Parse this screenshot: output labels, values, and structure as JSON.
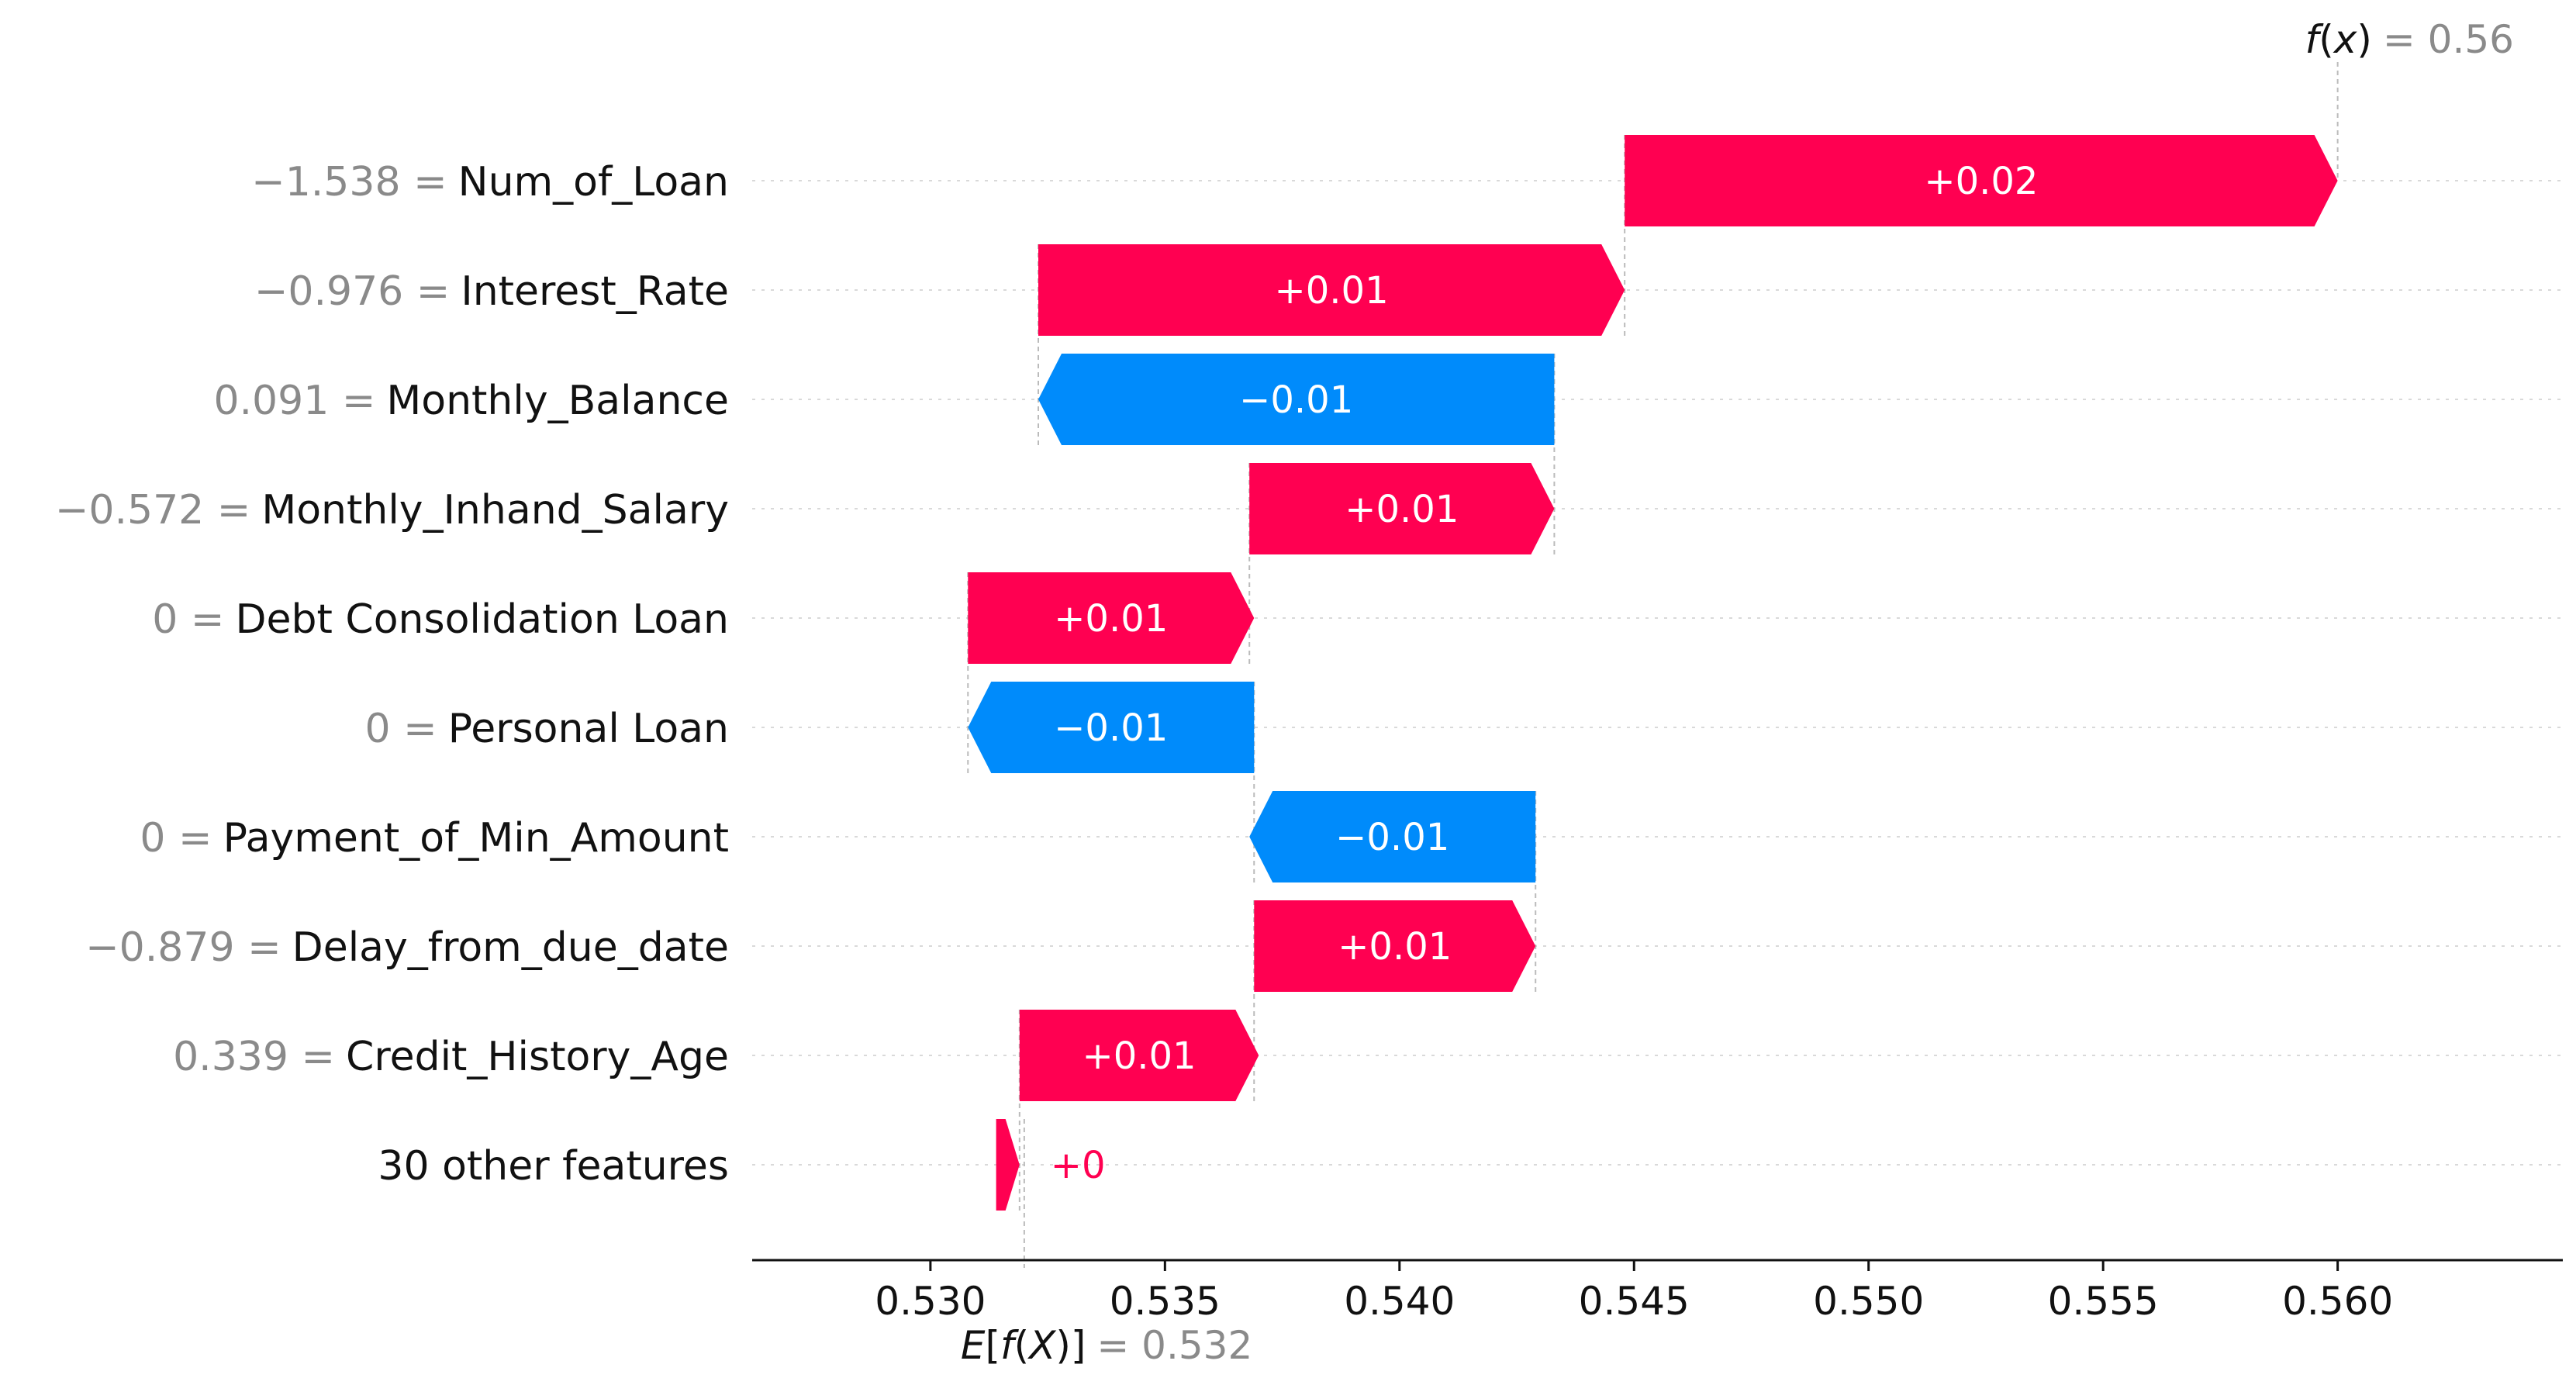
{
  "chart_data": {
    "type": "waterfall",
    "colors": {
      "positive": "#ff0051",
      "negative": "#008bfb",
      "axis": "#111111",
      "grid": "#d9d9d9",
      "value_text": "#8a8a8a"
    },
    "xlim": [
      0.5262,
      0.5648
    ],
    "x_ticks": [
      0.53,
      0.535,
      0.54,
      0.545,
      0.55,
      0.555,
      0.56
    ],
    "x_tick_labels": [
      "0.530",
      "0.535",
      "0.540",
      "0.545",
      "0.550",
      "0.555",
      "0.560"
    ],
    "base_value": {
      "value": 0.532,
      "prefix": "E[",
      "func": "f",
      "arg": "X",
      "suffix": "]]",
      "eq_text": "= 0.532"
    },
    "output_value": {
      "value": 0.56,
      "func": "f",
      "arg": "x",
      "eq_text": "= 0.56"
    },
    "features": [
      {
        "value_text": "−1.538 =",
        "name": "Num_of_Loan",
        "start": 0.5448,
        "end": 0.56,
        "label": "+0.02",
        "sign": "pos",
        "label_inside": true
      },
      {
        "value_text": "−0.976 =",
        "name": "Interest_Rate",
        "start": 0.5323,
        "end": 0.5448,
        "label": "+0.01",
        "sign": "pos",
        "label_inside": true
      },
      {
        "value_text": "0.091 =",
        "name": "Monthly_Balance",
        "start": 0.5433,
        "end": 0.5323,
        "label": "−0.01",
        "sign": "neg",
        "label_inside": true
      },
      {
        "value_text": "−0.572 =",
        "name": "Monthly_Inhand_Salary",
        "start": 0.5368,
        "end": 0.5433,
        "label": "+0.01",
        "sign": "pos",
        "label_inside": true
      },
      {
        "value_text": "0 =",
        "name": "Debt Consolidation Loan",
        "start": 0.5308,
        "end": 0.5369,
        "label": "+0.01",
        "sign": "pos",
        "label_inside": true
      },
      {
        "value_text": "0 =",
        "name": "Personal Loan",
        "start": 0.5369,
        "end": 0.5308,
        "label": "−0.01",
        "sign": "neg",
        "label_inside": true
      },
      {
        "value_text": "0 =",
        "name": "Payment_of_Min_Amount",
        "start": 0.5429,
        "end": 0.5368,
        "label": "−0.01",
        "sign": "neg",
        "label_inside": true
      },
      {
        "value_text": "−0.879 =",
        "name": "Delay_from_due_date",
        "start": 0.5369,
        "end": 0.5429,
        "label": "+0.01",
        "sign": "pos",
        "label_inside": true
      },
      {
        "value_text": "0.339 =",
        "name": "Credit_History_Age",
        "start": 0.5319,
        "end": 0.537,
        "label": "+0.01",
        "sign": "pos",
        "label_inside": true
      },
      {
        "value_text": "",
        "name": "30 other features",
        "start": 0.5314,
        "end": 0.5319,
        "label": "+0",
        "sign": "pos",
        "label_inside": false
      }
    ]
  }
}
